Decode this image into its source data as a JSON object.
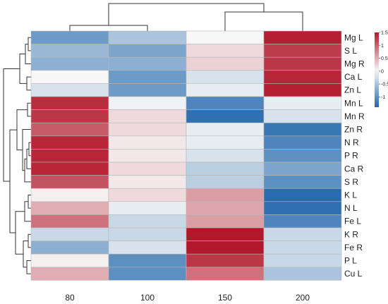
{
  "chart_data": {
    "type": "heatmap",
    "columns": [
      "80",
      "100",
      "150",
      "200"
    ],
    "rows": [
      "Mg L",
      "S L",
      "Mg R",
      "Ca L",
      "Zn L",
      "Mn L",
      "Mn R",
      "Zn R",
      "N R",
      "P R",
      "Ca R",
      "S R",
      "K L",
      "N L",
      "Fe L",
      "K R",
      "Fe R",
      "P L",
      "Cu L"
    ],
    "values": [
      [
        -0.9,
        -0.5,
        0.0,
        1.45
      ],
      [
        -0.6,
        -0.8,
        0.2,
        1.25
      ],
      [
        -0.7,
        -0.7,
        0.25,
        1.3
      ],
      [
        0.0,
        -0.9,
        -0.2,
        1.4
      ],
      [
        -0.2,
        -0.9,
        -0.1,
        1.45
      ],
      [
        1.35,
        -0.05,
        -1.1,
        -0.1
      ],
      [
        1.3,
        0.2,
        -1.3,
        -0.2
      ],
      [
        1.05,
        0.2,
        -0.1,
        -1.25
      ],
      [
        1.4,
        0.1,
        -0.1,
        -1.1
      ],
      [
        1.4,
        0.1,
        -0.2,
        -1.0
      ],
      [
        1.4,
        0.2,
        -0.4,
        -0.8
      ],
      [
        1.1,
        0.1,
        -0.4,
        -1.0
      ],
      [
        0.05,
        0.2,
        0.6,
        -1.35
      ],
      [
        0.5,
        -0.1,
        0.55,
        -1.3
      ],
      [
        0.9,
        -0.3,
        0.6,
        -1.1
      ],
      [
        -0.3,
        -0.3,
        1.5,
        -0.3
      ],
      [
        -0.7,
        -0.2,
        1.5,
        -0.3
      ],
      [
        0.05,
        -1.0,
        1.3,
        -0.3
      ],
      [
        0.5,
        -1.0,
        0.9,
        -0.5
      ]
    ],
    "color_scale": {
      "min": -1.4,
      "max": 1.5,
      "low_color": "#2166ac",
      "mid_color": "#f7f7f7",
      "high_color": "#b2182b"
    },
    "legend": {
      "ticks": [
        "1.5",
        "1",
        "0.5",
        "0",
        "-0.5",
        "-1"
      ],
      "tick_values": [
        1.5,
        1.0,
        0.5,
        0.0,
        -0.5,
        -1.0
      ],
      "placement": "top-right"
    },
    "column_dendrogram": true,
    "row_dendrogram": true
  }
}
